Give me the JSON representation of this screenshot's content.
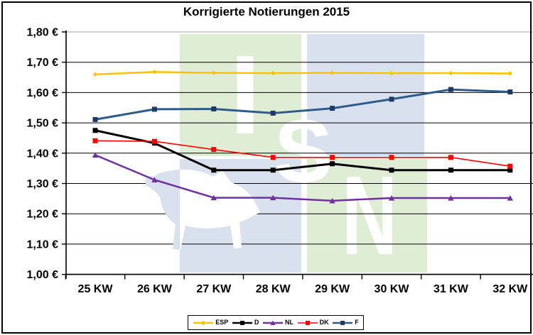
{
  "chart_data": {
    "type": "line",
    "title": "Korrigierte Notierungen 2015",
    "categories": [
      "25 KW",
      "26 KW",
      "27 KW",
      "28 KW",
      "29 KW",
      "30 KW",
      "31 KW",
      "32 KW"
    ],
    "series": [
      {
        "name": "ESP",
        "color": "#FFC000",
        "marker": "diamond",
        "marker_color": "#FFC000",
        "line_width": 2.4,
        "values": [
          1.66,
          1.668,
          1.665,
          1.664,
          1.665,
          1.664,
          1.664,
          1.663
        ]
      },
      {
        "name": "D",
        "color": "#000000",
        "marker": "square",
        "marker_color": "#000000",
        "line_width": 3,
        "values": [
          1.475,
          1.433,
          1.344,
          1.344,
          1.365,
          1.344,
          1.344,
          1.344
        ]
      },
      {
        "name": "NL",
        "color": "#7030A0",
        "marker": "triangle",
        "marker_color": "#7030A0",
        "line_width": 2.5,
        "values": [
          1.394,
          1.312,
          1.253,
          1.253,
          1.243,
          1.252,
          1.252,
          1.252
        ]
      },
      {
        "name": "DK",
        "color": "#FF0000",
        "marker": "square",
        "marker_color": "#FF0000",
        "line_width": 1.6,
        "values": [
          1.441,
          1.439,
          1.412,
          1.386,
          1.386,
          1.386,
          1.386,
          1.357
        ]
      },
      {
        "name": "F",
        "color": "#2E5C8A",
        "marker": "square",
        "marker_color": "#1F3864",
        "line_width": 3,
        "values": [
          1.511,
          1.545,
          1.546,
          1.532,
          1.548,
          1.578,
          1.61,
          1.602
        ]
      }
    ],
    "ylim": [
      1.0,
      1.8
    ],
    "ytick_step": 0.1,
    "ytick_labels": [
      "1,80 €",
      "1,70 €",
      "1,60 €",
      "1,50 €",
      "1,40 €",
      "1,30 €",
      "1,20 €",
      "1,10 €",
      "1,00 €"
    ],
    "xlabel": "",
    "ylabel": "",
    "grid": true,
    "legend_position": "bottom",
    "legend_entries": [
      "ESP",
      "D",
      "NL",
      "DK",
      "F"
    ]
  },
  "watermark": {
    "letters": [
      "I",
      "S",
      "N"
    ],
    "tile_green": "#DFEDD4",
    "tile_blue": "#D9E1EE",
    "letter_color": "#FFFFFF",
    "pig_color": "#D9E1EE"
  },
  "frame": {
    "border_color": "#000000"
  }
}
